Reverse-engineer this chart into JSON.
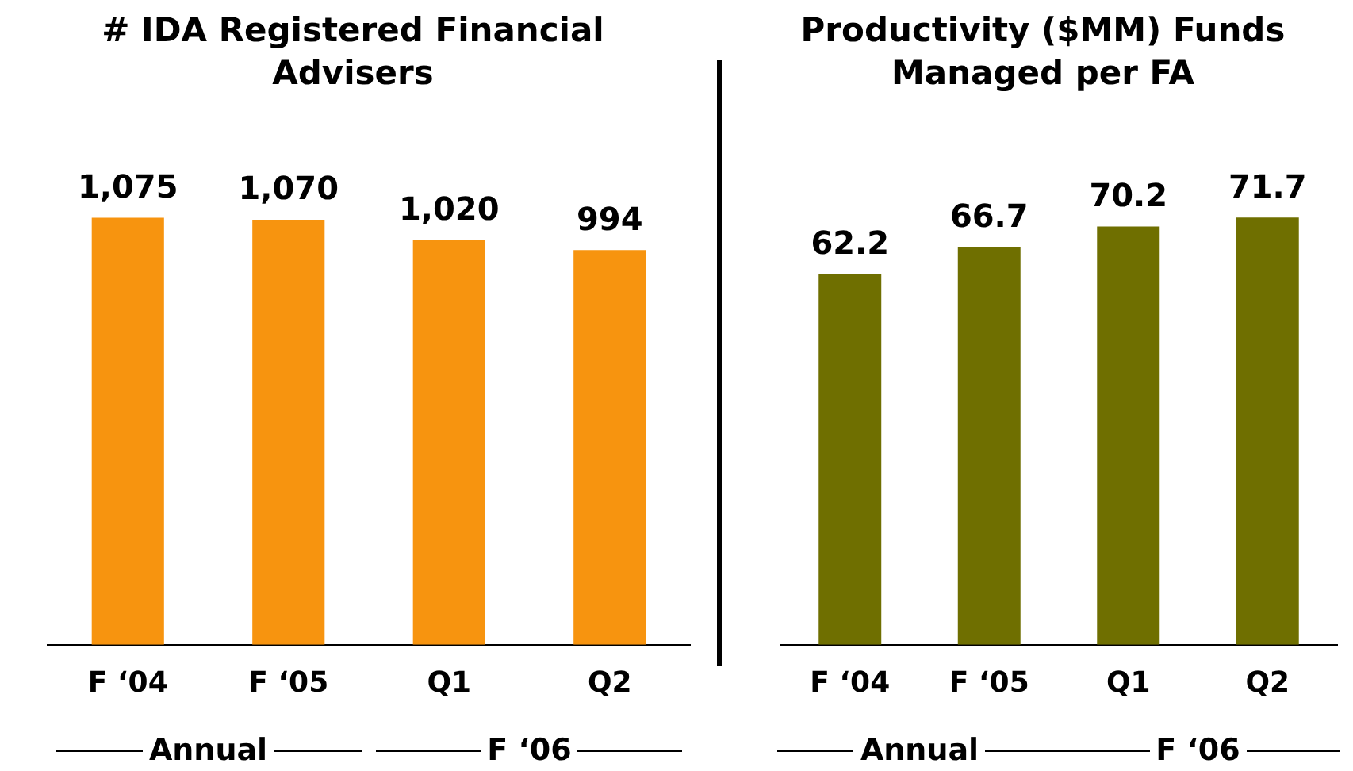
{
  "chart_data": [
    {
      "type": "bar",
      "title": "# IDA Registered Financial Advisers",
      "categories": [
        "F ‘04",
        "F ‘05",
        "Q1",
        "Q2"
      ],
      "values": [
        1075,
        1070,
        1020,
        994
      ],
      "color": "#f7940f",
      "data_labels": true,
      "value_labels": [
        "1,075",
        "1,070",
        "1,020",
        "994"
      ],
      "grid": false,
      "tick_labels": "x",
      "legend": false,
      "annotations": [
        "Annual",
        "F ‘06"
      ]
    },
    {
      "type": "bar",
      "title": "Productivity ($MM) Funds Managed per FA",
      "categories": [
        "F ‘04",
        "F ‘05",
        "Q1",
        "Q2"
      ],
      "values": [
        62.2,
        66.7,
        70.2,
        71.7
      ],
      "color": "#6f6f00",
      "data_labels": true,
      "value_labels": [
        "62.2",
        "66.7",
        "70.2",
        "71.7"
      ],
      "grid": false,
      "tick_labels": "x",
      "legend": false,
      "annotations": [
        "Annual",
        "F ‘06"
      ]
    }
  ]
}
